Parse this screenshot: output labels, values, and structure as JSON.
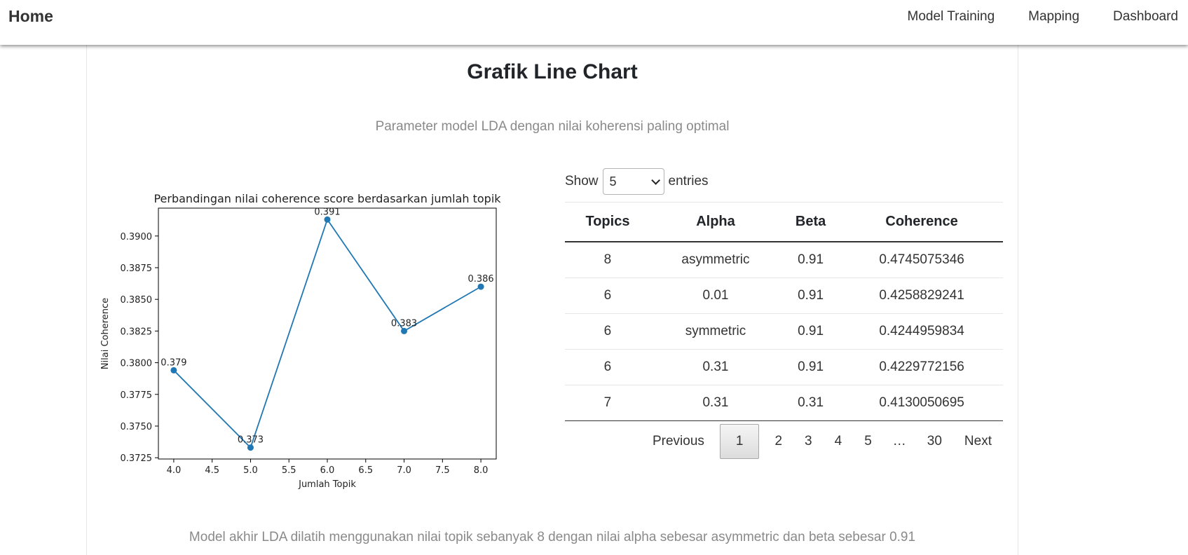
{
  "nav": {
    "brand": "Home",
    "links": [
      "Model Training",
      "Mapping",
      "Dashboard"
    ]
  },
  "page": {
    "title": "Grafik Line Chart",
    "subtitle": "Parameter model LDA dengan nilai koherensi paling optimal",
    "footer": "Model akhir LDA dilatih menggunakan nilai topik sebanyak 8 dengan nilai alpha sebesar asymmetric dan beta sebesar 0.91"
  },
  "table": {
    "show_label": "Show",
    "entries_label": "entries",
    "page_size": "5",
    "columns": [
      "Topics",
      "Alpha",
      "Beta",
      "Coherence"
    ],
    "rows": [
      [
        "8",
        "asymmetric",
        "0.91",
        "0.4745075346"
      ],
      [
        "6",
        "0.01",
        "0.91",
        "0.4258829241"
      ],
      [
        "6",
        "symmetric",
        "0.91",
        "0.4244959834"
      ],
      [
        "6",
        "0.31",
        "0.91",
        "0.4229772156"
      ],
      [
        "7",
        "0.31",
        "0.31",
        "0.4130050695"
      ]
    ],
    "pagination": {
      "previous": "Previous",
      "pages": [
        "1",
        "2",
        "3",
        "4",
        "5"
      ],
      "ellipsis": "…",
      "last": "30",
      "next": "Next",
      "current": "1"
    }
  },
  "chart_data": {
    "type": "line",
    "title": "Perbandingan nilai coherence score berdasarkan jumlah topik",
    "xlabel": "Jumlah Topik",
    "ylabel": "Nilai Coherence",
    "x": [
      4.0,
      5.0,
      6.0,
      7.0,
      8.0
    ],
    "y": [
      0.3794,
      0.3733,
      0.3913,
      0.3825,
      0.386
    ],
    "point_labels": [
      "0.379",
      "0.373",
      "0.391",
      "0.383",
      "0.386"
    ],
    "xlim": [
      3.8,
      8.2
    ],
    "ylim": [
      0.3724,
      0.3922
    ],
    "xticks": [
      "4.0",
      "4.5",
      "5.0",
      "5.5",
      "6.0",
      "6.5",
      "7.0",
      "7.5",
      "8.0"
    ],
    "yticks": [
      "0.3725",
      "0.3750",
      "0.3775",
      "0.3800",
      "0.3825",
      "0.3850",
      "0.3875",
      "0.3900"
    ],
    "color": "#1f77b4",
    "grid": false
  }
}
